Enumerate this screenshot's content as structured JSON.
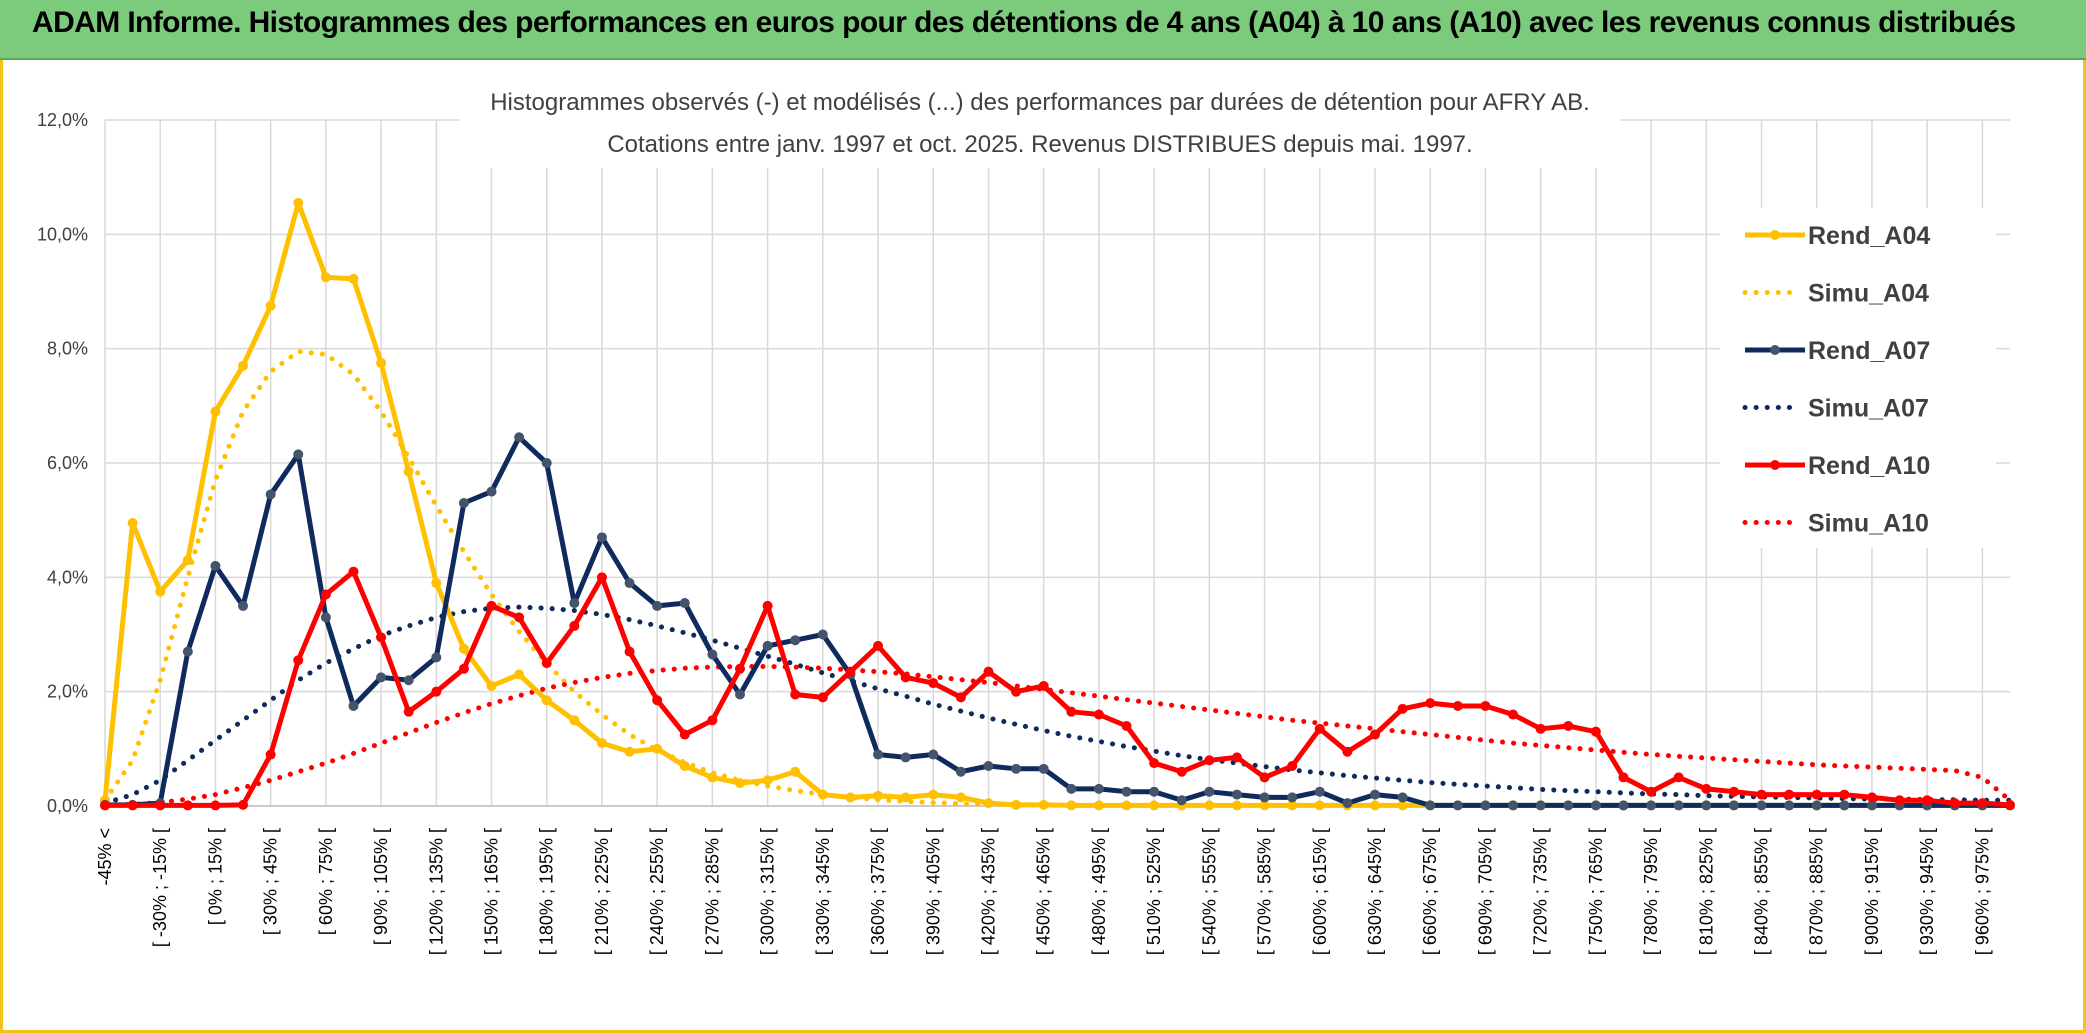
{
  "header": {
    "title": "ADAM Informe. Histogrammes des performances en euros pour des détentions de 4 ans (A04) à 10 ans (A10) avec les revenus connus distribués"
  },
  "chart_data": {
    "type": "line",
    "title_line1": "Histogrammes observés (-) et modélisés (...) des performances par durées de détention pour AFRY AB.",
    "title_line2": "Cotations entre janv. 1997 et oct. 2025. Revenus DISTRIBUES depuis mai. 1997.",
    "ylim": [
      0,
      12
    ],
    "yticks": [
      "0,0%",
      "2,0%",
      "4,0%",
      "6,0%",
      "8,0%",
      "10,0%",
      "12,0%"
    ],
    "grid": true,
    "legend_position": "right",
    "x_tick_labels": [
      "-45% <",
      "[ -30% ; -15% [",
      "[ 0% ; 15% [",
      "[ 30% ; 45% [",
      "[ 60% ; 75% [",
      "[ 90% ; 105% [",
      "[ 120% ; 135% [",
      "[ 150% ; 165% [",
      "[ 180% ; 195% [",
      "[ 210% ; 225% [",
      "[ 240% ; 255% [",
      "[ 270% ; 285% [",
      "[ 300% ; 315% [",
      "[ 330% ; 345% [",
      "[ 360% ; 375% [",
      "[ 390% ; 405% [",
      "[ 420% ; 435% [",
      "[ 450% ; 465% [",
      "[ 480% ; 495% [",
      "[ 510% ; 525% [",
      "[ 540% ; 555% [",
      "[ 570% ; 585% [",
      "[ 600% ; 615% [",
      "[ 630% ; 645% [",
      "[ 660% ; 675% [",
      "[ 690% ; 705% [",
      "[ 720% ; 735% [",
      "[ 750% ; 765% [",
      "[ 780% ; 795% [",
      "[ 810% ; 825% [",
      "[ 840% ; 855% [",
      "[ 870% ; 885% [",
      "[ 900% ; 915% [",
      "[ 930% ; 945% [",
      "[ 960% ; 975% ["
    ],
    "series": [
      {
        "name": "Rend_A04",
        "style": "solid",
        "color": "#ffc000",
        "values": [
          0.1,
          4.95,
          3.75,
          4.3,
          6.9,
          7.7,
          8.75,
          10.55,
          9.25,
          9.22,
          7.75,
          5.85,
          3.9,
          2.75,
          2.1,
          2.3,
          1.85,
          1.5,
          1.1,
          0.95,
          1.0,
          0.7,
          0.5,
          0.4,
          0.45,
          0.6,
          0.2,
          0.15,
          0.18,
          0.15,
          0.2,
          0.15,
          0.05,
          0.02,
          0.02,
          0.01,
          0.01,
          0.01,
          0.01,
          0.01,
          0.01,
          0.01,
          0.01,
          0.01,
          0.01,
          0.01,
          0.01,
          0.01,
          0.01,
          0.01,
          0.01,
          0.01,
          0.01,
          0.01,
          0.01,
          0.01,
          0.01,
          0.01,
          0.01,
          0.01,
          0.01,
          0.01,
          0.01,
          0.01,
          0.01,
          0.01,
          0.01,
          0.01,
          0.01,
          0.01
        ]
      },
      {
        "name": "Simu_A04",
        "style": "dotted",
        "color": "#ffc000",
        "values": [
          0.1,
          0.8,
          2.2,
          4.0,
          5.7,
          6.9,
          7.6,
          7.95,
          7.9,
          7.55,
          6.9,
          6.1,
          5.25,
          4.45,
          3.7,
          3.05,
          2.5,
          2.0,
          1.6,
          1.25,
          0.98,
          0.76,
          0.58,
          0.45,
          0.35,
          0.27,
          0.2,
          0.15,
          0.11,
          0.08,
          0.06,
          0.04,
          0.03,
          0.02,
          0.01,
          0.01,
          0.01,
          0.01,
          0.01,
          0.01,
          0.01,
          0.01,
          0.01,
          0.01,
          0.01,
          0.01,
          0.01,
          0.01,
          0.01,
          0.01,
          0.01,
          0.01,
          0.01,
          0.01,
          0.01,
          0.01,
          0.01,
          0.01,
          0.01,
          0.01,
          0.01,
          0.01,
          0.01,
          0.01,
          0.01,
          0.01,
          0.01,
          0.01,
          0.01,
          0.01
        ]
      },
      {
        "name": "Rend_A07",
        "style": "solid",
        "color": "#0f2a5c",
        "values": [
          0.02,
          0.02,
          0.05,
          2.7,
          4.2,
          3.5,
          5.45,
          6.15,
          3.3,
          1.75,
          2.25,
          2.2,
          2.6,
          5.3,
          5.5,
          6.45,
          6.0,
          3.55,
          4.7,
          3.9,
          3.5,
          3.55,
          2.65,
          1.95,
          2.8,
          2.9,
          3.0,
          2.3,
          0.9,
          0.85,
          0.9,
          0.6,
          0.7,
          0.65,
          0.65,
          0.3,
          0.3,
          0.25,
          0.25,
          0.1,
          0.25,
          0.2,
          0.15,
          0.15,
          0.25,
          0.05,
          0.2,
          0.15,
          0.01,
          0.01,
          0.01,
          0.01,
          0.01,
          0.01,
          0.01,
          0.01,
          0.01,
          0.01,
          0.01,
          0.01,
          0.01,
          0.01,
          0.01,
          0.01,
          0.01,
          0.01,
          0.01,
          0.01,
          0.01,
          0.01
        ]
      },
      {
        "name": "Simu_A07",
        "style": "dotted",
        "color": "#0f2a5c",
        "values": [
          0.05,
          0.2,
          0.45,
          0.8,
          1.15,
          1.5,
          1.85,
          2.2,
          2.5,
          2.75,
          2.98,
          3.15,
          3.3,
          3.4,
          3.46,
          3.48,
          3.46,
          3.42,
          3.35,
          3.26,
          3.15,
          3.03,
          2.9,
          2.76,
          2.62,
          2.48,
          2.33,
          2.19,
          2.05,
          1.92,
          1.78,
          1.66,
          1.54,
          1.43,
          1.32,
          1.22,
          1.13,
          1.04,
          0.96,
          0.88,
          0.81,
          0.75,
          0.69,
          0.63,
          0.58,
          0.53,
          0.49,
          0.45,
          0.41,
          0.38,
          0.35,
          0.32,
          0.29,
          0.27,
          0.25,
          0.23,
          0.21,
          0.2,
          0.18,
          0.17,
          0.16,
          0.15,
          0.14,
          0.13,
          0.12,
          0.12,
          0.11,
          0.11,
          0.1,
          0.1
        ]
      },
      {
        "name": "Rend_A10",
        "style": "solid",
        "color": "#ff0000",
        "values": [
          0.01,
          0.01,
          0.01,
          0.01,
          0.01,
          0.02,
          0.9,
          2.55,
          3.7,
          4.1,
          2.95,
          1.65,
          2.0,
          2.4,
          3.5,
          3.3,
          2.5,
          3.15,
          4.0,
          2.7,
          1.85,
          1.25,
          1.5,
          2.4,
          3.5,
          1.95,
          1.9,
          2.35,
          2.8,
          2.25,
          2.15,
          1.9,
          2.35,
          2.0,
          2.1,
          1.65,
          1.6,
          1.4,
          0.75,
          0.6,
          0.8,
          0.85,
          0.5,
          0.7,
          1.35,
          0.95,
          1.25,
          1.7,
          1.8,
          1.75,
          1.75,
          1.6,
          1.35,
          1.4,
          1.3,
          0.5,
          0.25,
          0.5,
          0.3,
          0.25,
          0.2,
          0.2,
          0.2,
          0.2,
          0.15,
          0.1,
          0.1,
          0.05,
          0.05,
          0.02
        ]
      },
      {
        "name": "Simu_A10",
        "style": "dotted",
        "color": "#ff0000",
        "values": [
          0.01,
          0.03,
          0.06,
          0.12,
          0.2,
          0.32,
          0.45,
          0.6,
          0.75,
          0.92,
          1.1,
          1.28,
          1.46,
          1.63,
          1.79,
          1.93,
          2.06,
          2.16,
          2.25,
          2.32,
          2.37,
          2.41,
          2.43,
          2.44,
          2.44,
          2.43,
          2.41,
          2.38,
          2.35,
          2.31,
          2.26,
          2.21,
          2.16,
          2.1,
          2.04,
          1.98,
          1.92,
          1.86,
          1.8,
          1.74,
          1.68,
          1.62,
          1.56,
          1.5,
          1.45,
          1.4,
          1.35,
          1.3,
          1.25,
          1.2,
          1.15,
          1.1,
          1.06,
          1.02,
          0.98,
          0.94,
          0.9,
          0.87,
          0.84,
          0.81,
          0.78,
          0.75,
          0.72,
          0.7,
          0.68,
          0.66,
          0.64,
          0.62,
          0.5,
          0.1
        ]
      }
    ]
  }
}
